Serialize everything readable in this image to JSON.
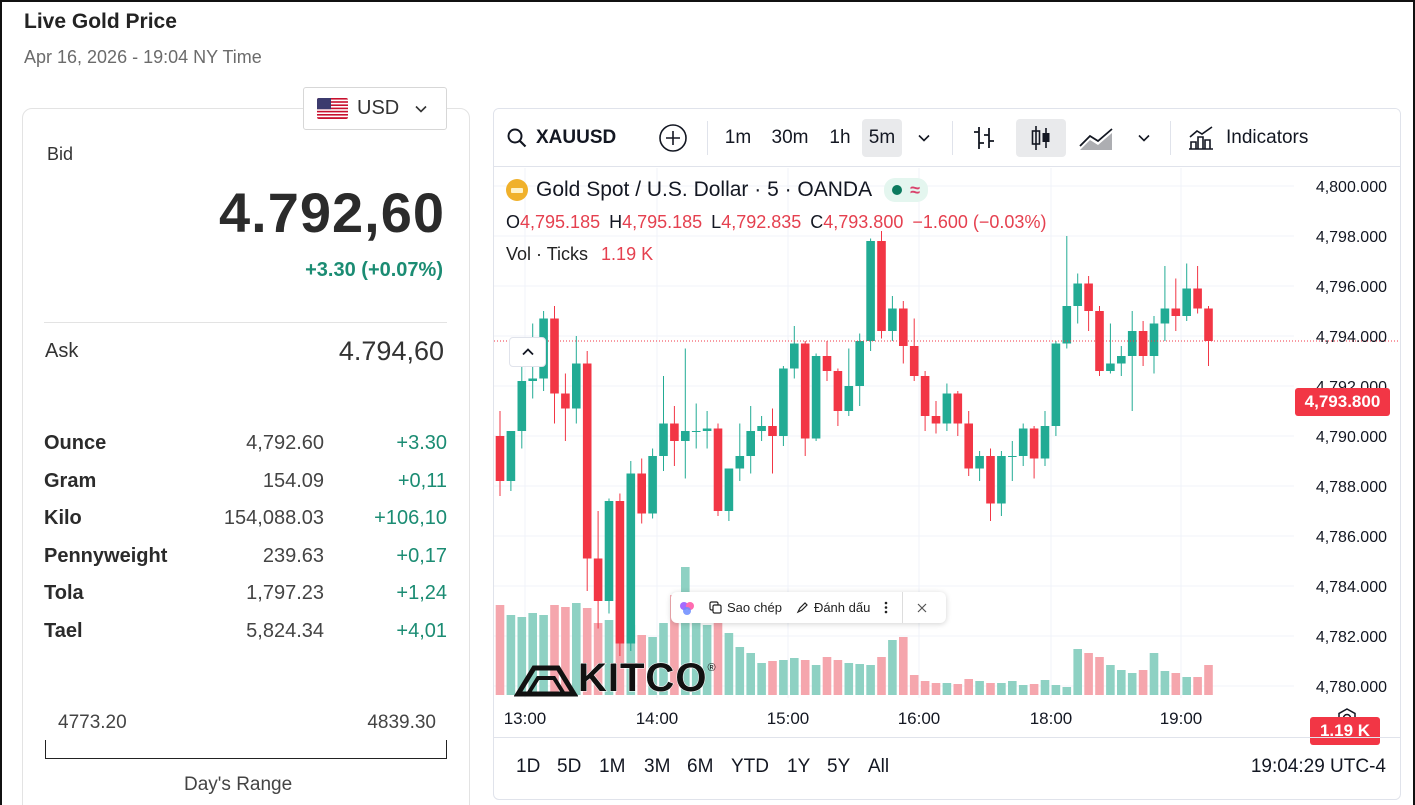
{
  "header": {
    "title": "Live Gold Price",
    "datetime": "Apr 16, 2026 - 19:04 NY Time"
  },
  "currency": {
    "selected": "USD",
    "flag_icon": "us-flag-icon"
  },
  "bid": {
    "label": "Bid",
    "price": "4.792,60",
    "change": "+3.30 (+0.07%)"
  },
  "ask": {
    "label": "Ask",
    "price": "4.794,60"
  },
  "units": [
    {
      "name": "Ounce",
      "value": "4,792.60",
      "change": "+3.30"
    },
    {
      "name": "Gram",
      "value": "154.09",
      "change": "+0,11"
    },
    {
      "name": "Kilo",
      "value": "154,088.03",
      "change": "+106,10"
    },
    {
      "name": "Pennyweight",
      "value": "239.63",
      "change": "+0,17"
    },
    {
      "name": "Tola",
      "value": "1,797.23",
      "change": "+1,24"
    },
    {
      "name": "Tael",
      "value": "5,824.34",
      "change": "+4,01"
    }
  ],
  "day_range": {
    "low": "4773.20",
    "high": "4839.30",
    "label": "Day's Range"
  },
  "toolbar": {
    "symbol": "XAUUSD",
    "intervals": [
      "1m",
      "30m",
      "1h",
      "5m"
    ],
    "active_interval": "5m",
    "indicators_label": "Indicators"
  },
  "legend": {
    "title": "Gold Spot / U.S. Dollar · 5 · OANDA",
    "o_label": "O",
    "o": "4,795.185",
    "h_label": "H",
    "h": "4,795.185",
    "l_label": "L",
    "l": "4,792.835",
    "c_label": "C",
    "c": "4,793.800",
    "change": "−1.600 (−0.03%)",
    "vol_label": "Vol · Ticks",
    "vol_value": "1.19 K"
  },
  "popup": {
    "copy_label": "Sao chép",
    "mark_label": "Đánh dấu"
  },
  "watermark": "KITCO",
  "price_tag": "4,793.800",
  "volume_tag": "1.19 K",
  "ranges": [
    "1D",
    "5D",
    "1M",
    "3M",
    "6M",
    "YTD",
    "1Y",
    "5Y",
    "All"
  ],
  "clock": "19:04:29 UTC-4",
  "colors": {
    "up": "#22ab94",
    "down": "#f23645",
    "vol_up": "#8ed1c3",
    "vol_down": "#f5a6ad",
    "tag": "#f23645"
  },
  "chart_data": {
    "type": "candlestick",
    "y_ticks": [
      "4,800.000",
      "4,798.000",
      "4,796.000",
      "4,794.000",
      "4,792.000",
      "4,790.000",
      "4,788.000",
      "4,786.000",
      "4,784.000",
      "4,782.000",
      "4,780.000"
    ],
    "ylim": [
      4780,
      4800
    ],
    "x_ticks": [
      "13:00",
      "14:00",
      "15:00",
      "16:00",
      "18:00",
      "19:00"
    ],
    "candles": [
      [
        4790.0,
        4788.2,
        4791.0,
        4787.6
      ],
      [
        4788.2,
        4790.2,
        4790.2,
        4787.8
      ],
      [
        4790.2,
        4792.2,
        4793.0,
        4789.5
      ],
      [
        4792.2,
        4792.3,
        4794.5,
        4791.5
      ],
      [
        4792.3,
        4794.7,
        4795.0,
        4791.8
      ],
      [
        4794.7,
        4791.7,
        4795.2,
        4790.5
      ],
      [
        4791.7,
        4791.1,
        4792.5,
        4789.8
      ],
      [
        4791.1,
        4792.9,
        4794.0,
        4790.5
      ],
      [
        4792.9,
        4785.1,
        4793.4,
        4783.8
      ],
      [
        4785.1,
        4783.4,
        4787.0,
        4782.3
      ],
      [
        4783.4,
        4787.4,
        4787.5,
        4782.9
      ],
      [
        4787.4,
        4781.7,
        4787.7,
        4781.2
      ],
      [
        4781.7,
        4788.5,
        4789.0,
        4781.4
      ],
      [
        4788.5,
        4786.9,
        4789.1,
        4786.5
      ],
      [
        4786.9,
        4789.2,
        4789.5,
        4786.7
      ],
      [
        4789.2,
        4790.5,
        4792.4,
        4788.6
      ],
      [
        4790.5,
        4789.8,
        4791.2,
        4788.8
      ],
      [
        4789.8,
        4790.2,
        4793.5,
        4788.3
      ],
      [
        4790.2,
        4790.2,
        4791.3,
        4789.5
      ],
      [
        4790.2,
        4790.3,
        4791.0,
        4789.5
      ],
      [
        4790.3,
        4787.0,
        4790.5,
        4786.8
      ],
      [
        4787.0,
        4788.7,
        4788.7,
        4786.6
      ],
      [
        4788.7,
        4789.2,
        4790.5,
        4788.2
      ],
      [
        4789.2,
        4790.2,
        4791.2,
        4788.5
      ],
      [
        4790.2,
        4790.4,
        4790.8,
        4789.8
      ],
      [
        4790.4,
        4790.0,
        4791.1,
        4788.5
      ],
      [
        4790.0,
        4792.7,
        4792.8,
        4789.6
      ],
      [
        4792.7,
        4793.7,
        4794.4,
        4792.3
      ],
      [
        4793.7,
        4789.9,
        4793.8,
        4789.2
      ],
      [
        4789.9,
        4793.2,
        4793.3,
        4789.8
      ],
      [
        4793.2,
        4792.6,
        4793.8,
        4792.2
      ],
      [
        4792.6,
        4791.0,
        4792.7,
        4790.4
      ],
      [
        4791.0,
        4792.0,
        4793.5,
        4790.8
      ],
      [
        4792.0,
        4793.8,
        4794.1,
        4791.2
      ],
      [
        4793.8,
        4797.8,
        4797.9,
        4793.4
      ],
      [
        4797.8,
        4794.2,
        4798.2,
        4793.9
      ],
      [
        4794.2,
        4795.1,
        4795.6,
        4793.8
      ],
      [
        4795.1,
        4793.6,
        4795.4,
        4792.9
      ],
      [
        4793.6,
        4792.4,
        4794.7,
        4792.2
      ],
      [
        4792.4,
        4790.8,
        4792.6,
        4790.2
      ],
      [
        4790.8,
        4790.5,
        4791.4,
        4790.1
      ],
      [
        4790.5,
        4791.7,
        4792.1,
        4790.2
      ],
      [
        4791.7,
        4790.5,
        4791.8,
        4790.0
      ],
      [
        4790.5,
        4788.7,
        4791.0,
        4788.4
      ],
      [
        4788.7,
        4789.2,
        4789.4,
        4788.2
      ],
      [
        4789.2,
        4787.3,
        4789.5,
        4786.6
      ],
      [
        4787.3,
        4789.2,
        4789.4,
        4786.8
      ],
      [
        4789.2,
        4789.2,
        4789.8,
        4788.2
      ],
      [
        4789.2,
        4790.3,
        4790.5,
        4788.8
      ],
      [
        4790.3,
        4789.1,
        4790.4,
        4788.3
      ],
      [
        4789.1,
        4790.4,
        4791.0,
        4788.8
      ],
      [
        4790.4,
        4793.7,
        4793.8,
        4790.0
      ],
      [
        4793.7,
        4795.2,
        4798.0,
        4793.5
      ],
      [
        4795.2,
        4796.1,
        4796.5,
        4794.5
      ],
      [
        4796.1,
        4795.0,
        4796.4,
        4794.2
      ],
      [
        4795.0,
        4792.6,
        4795.2,
        4792.4
      ],
      [
        4792.6,
        4792.9,
        4794.5,
        4792.5
      ],
      [
        4792.9,
        4793.2,
        4793.6,
        4792.4
      ],
      [
        4793.2,
        4794.2,
        4795.0,
        4791.0
      ],
      [
        4794.2,
        4793.2,
        4794.6,
        4792.8
      ],
      [
        4793.2,
        4794.5,
        4794.8,
        4792.5
      ],
      [
        4794.5,
        4795.1,
        4796.8,
        4793.8
      ],
      [
        4795.1,
        4794.8,
        4796.3,
        4794.2
      ],
      [
        4794.8,
        4795.9,
        4796.9,
        4794.6
      ],
      [
        4795.9,
        4795.1,
        4796.8,
        4794.9
      ],
      [
        4795.1,
        4793.8,
        4795.2,
        4792.8
      ]
    ],
    "volume": [
      0.9,
      0.8,
      0.78,
      0.82,
      0.8,
      0.9,
      0.88,
      0.92,
      0.87,
      0.72,
      0.75,
      0.95,
      0.7,
      0.6,
      0.58,
      0.72,
      1.0,
      1.28,
      0.82,
      0.7,
      0.74,
      0.62,
      0.48,
      0.42,
      0.32,
      0.34,
      0.35,
      0.37,
      0.35,
      0.3,
      0.38,
      0.35,
      0.32,
      0.31,
      0.3,
      0.38,
      0.55,
      0.58,
      0.2,
      0.14,
      0.12,
      0.12,
      0.11,
      0.16,
      0.14,
      0.12,
      0.12,
      0.14,
      0.1,
      0.11,
      0.15,
      0.1,
      0.08,
      0.46,
      0.42,
      0.38,
      0.3,
      0.25,
      0.22,
      0.25,
      0.42,
      0.24,
      0.22,
      0.18,
      0.18,
      0.3
    ]
  }
}
